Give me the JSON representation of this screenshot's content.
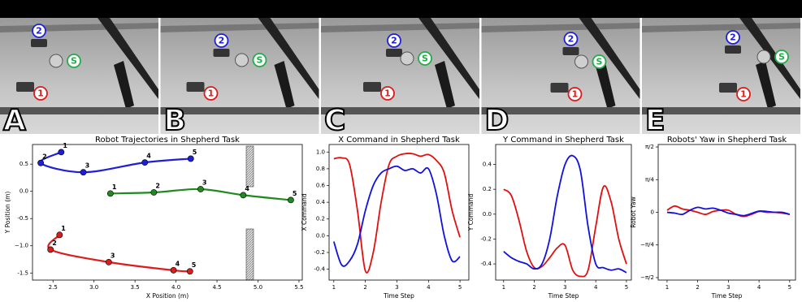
{
  "scenes": [
    {
      "label": "A",
      "robot_2": "2",
      "sheep": "S",
      "robot_1": "1"
    },
    {
      "label": "B",
      "robot_2": "2",
      "sheep": "S",
      "robot_1": "1"
    },
    {
      "label": "C",
      "robot_2": "2",
      "sheep": "S",
      "robot_1": "1"
    },
    {
      "label": "D",
      "robot_2": "2",
      "sheep": "S",
      "robot_1": "1"
    },
    {
      "label": "E",
      "robot_2": "2",
      "sheep": "S",
      "robot_1": "1"
    }
  ],
  "chart_data": [
    {
      "type": "line",
      "markers": true,
      "title": "Robot Trajectories in Shepherd Task",
      "x_label": "X Position (m)",
      "y_label": "Y Position (m)",
      "xlim": [
        2.25,
        5.54
      ],
      "ylim": [
        -1.63,
        0.86
      ],
      "xticks": [
        2.5,
        {
          "value": 3,
          "label": "3.0"
        },
        3.5,
        {
          "value": 4,
          "label": "4.0"
        },
        4.5,
        {
          "value": 5,
          "label": "5.0"
        },
        5.5
      ],
      "yticks": [
        -1.5,
        {
          "value": -1,
          "label": "−1.0"
        },
        -0.5,
        {
          "value": 0,
          "label": "0.0"
        },
        0.5
      ],
      "series": [
        {
          "color": "#1f1fd6",
          "x": [
            2.6,
            2.35,
            2.87,
            3.62,
            4.18
          ],
          "values": [
            0.72,
            0.52,
            0.35,
            0.53,
            0.6
          ],
          "point_labels": [
            "1",
            "2",
            "3",
            "4",
            "5"
          ]
        },
        {
          "color": "#1f8a1f",
          "x": [
            3.2,
            3.73,
            4.3,
            4.82,
            5.4
          ],
          "values": [
            -0.04,
            -0.02,
            0.04,
            -0.07,
            -0.16
          ],
          "point_labels": [
            "1",
            "2",
            "3",
            "4",
            "5"
          ]
        },
        {
          "color": "#dd1c1c",
          "x": [
            2.58,
            2.47,
            3.18,
            3.97,
            4.17
          ],
          "values": [
            -0.8,
            -1.07,
            -1.3,
            -1.45,
            -1.47
          ],
          "point_labels": [
            "1",
            "2",
            "3",
            "4",
            "5"
          ]
        }
      ]
    },
    {
      "type": "line",
      "title": "X Command in Shepherd Task",
      "x_label": "Time Step",
      "y_label": "X Command",
      "xlim": [
        0.85,
        5.28
      ],
      "ylim": [
        -0.53,
        1.09
      ],
      "xticks": [
        1,
        2,
        3,
        4,
        5
      ],
      "yticks": [
        -0.4,
        -0.2,
        {
          "value": 0,
          "label": "0.0"
        },
        0.2,
        0.4,
        0.6,
        0.8,
        {
          "value": 1,
          "label": "1.0"
        }
      ],
      "x": [
        1,
        1.25,
        1.5,
        1.75,
        2,
        2.25,
        2.5,
        2.75,
        3,
        3.25,
        3.5,
        3.75,
        4,
        4.25,
        4.5,
        4.75,
        5
      ],
      "series": [
        {
          "color": "#e01010",
          "values": [
            0.92,
            0.93,
            0.85,
            0.3,
            -0.42,
            -0.2,
            0.4,
            0.85,
            0.95,
            0.98,
            0.98,
            0.95,
            0.97,
            0.9,
            0.75,
            0.3,
            -0.02
          ]
        },
        {
          "color": "#1010e0",
          "values": [
            -0.07,
            -0.35,
            -0.3,
            -0.1,
            0.3,
            0.6,
            0.75,
            0.8,
            0.83,
            0.78,
            0.8,
            0.75,
            0.8,
            0.5,
            0.0,
            -0.3,
            -0.25
          ]
        }
      ]
    },
    {
      "type": "line",
      "title": "Y Command in Shepherd Task",
      "x_label": "Time Step",
      "y_label": "Y Command",
      "xlim": [
        0.74,
        5.16
      ],
      "ylim": [
        -0.53,
        0.56
      ],
      "xticks": [
        1,
        2,
        3,
        4,
        5
      ],
      "yticks": [
        -0.4,
        -0.2,
        {
          "value": 0,
          "label": "0.0"
        },
        0.2,
        0.4
      ],
      "x": [
        1,
        1.25,
        1.5,
        1.75,
        2,
        2.25,
        2.5,
        2.75,
        3,
        3.25,
        3.5,
        3.75,
        4,
        4.25,
        4.5,
        4.75,
        5
      ],
      "series": [
        {
          "color": "#e01010",
          "values": [
            0.2,
            0.15,
            -0.05,
            -0.3,
            -0.43,
            -0.42,
            -0.35,
            -0.27,
            -0.25,
            -0.45,
            -0.5,
            -0.45,
            -0.1,
            0.22,
            0.1,
            -0.2,
            -0.4
          ]
        },
        {
          "color": "#1010e0",
          "values": [
            -0.3,
            -0.35,
            -0.38,
            -0.4,
            -0.44,
            -0.4,
            -0.2,
            0.15,
            0.4,
            0.47,
            0.35,
            -0.1,
            -0.4,
            -0.43,
            -0.45,
            -0.44,
            -0.47
          ]
        }
      ]
    },
    {
      "type": "line",
      "title": "Robots' Yaw in Shepherd Task",
      "x_label": "Time Step",
      "y_label": "Robot Yaw",
      "xlim": [
        0.71,
        5.19
      ],
      "ylim": [
        -1.63,
        1.63
      ],
      "xticks": [
        1,
        2,
        3,
        4,
        5
      ],
      "yticks": [
        {
          "value": -1.5708,
          "label": "−π/2"
        },
        {
          "value": -0.7854,
          "label": "−π/4"
        },
        0,
        {
          "value": 0.7854,
          "label": "π/4"
        },
        {
          "value": 1.5708,
          "label": "π/2"
        }
      ],
      "x": [
        1,
        1.25,
        1.5,
        1.75,
        2,
        2.25,
        2.5,
        2.75,
        3,
        3.25,
        3.5,
        3.75,
        4,
        4.25,
        4.5,
        4.75,
        5
      ],
      "series": [
        {
          "color": "#e01010",
          "values": [
            0.05,
            0.15,
            0.08,
            0.05,
            0.0,
            -0.05,
            0.02,
            0.05,
            0.05,
            -0.05,
            -0.1,
            -0.05,
            0.02,
            0.0,
            0.0,
            -0.02,
            -0.05
          ]
        },
        {
          "color": "#1010e0",
          "values": [
            0.0,
            -0.02,
            -0.05,
            0.05,
            0.12,
            0.08,
            0.1,
            0.05,
            -0.02,
            -0.05,
            -0.08,
            -0.03,
            0.03,
            0.02,
            0.0,
            0.0,
            -0.05
          ]
        }
      ]
    }
  ]
}
